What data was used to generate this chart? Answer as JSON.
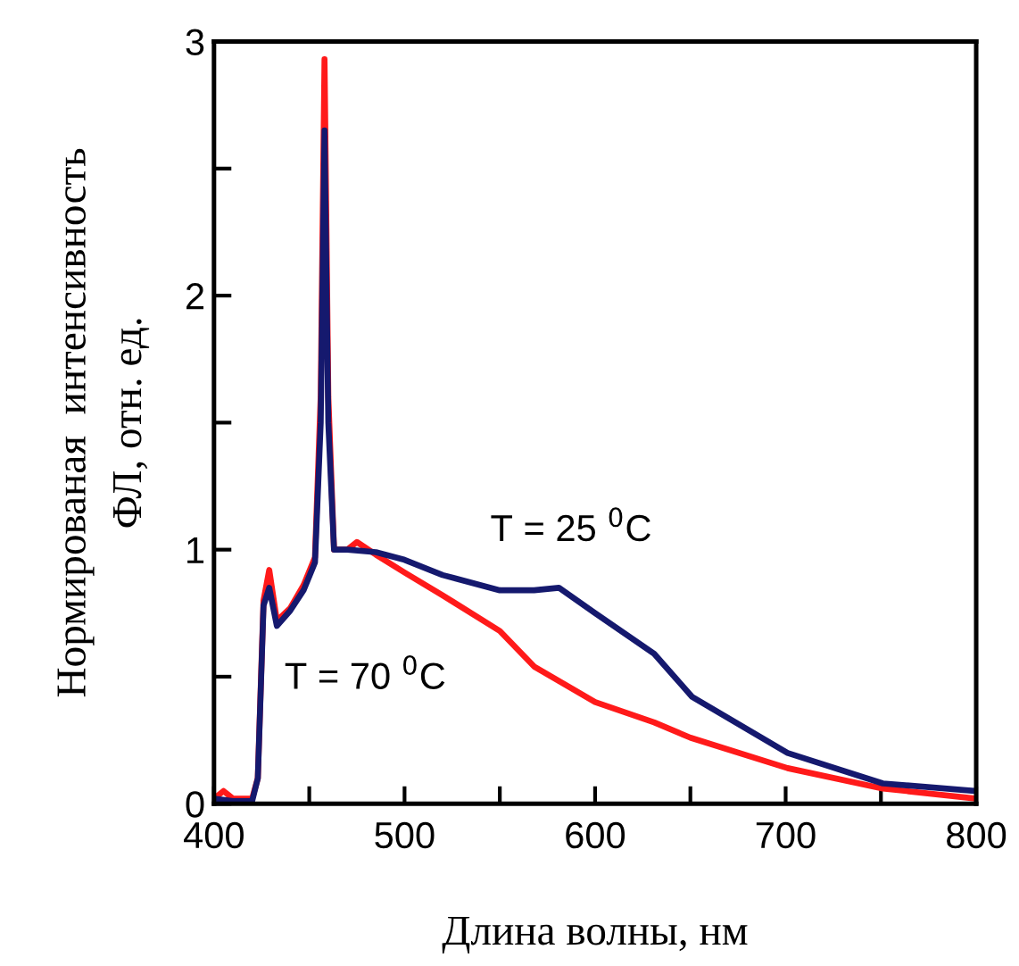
{
  "chart_data": {
    "type": "line",
    "xlabel": "Длина волны, нм",
    "ylabel": "Нормированая  интенсивность\nФЛ, отн. ед.",
    "series": [
      {
        "color": "#ff1a1a",
        "x": [
          400,
          405,
          410,
          420,
          423,
          426,
          429,
          433,
          440,
          447,
          453,
          456,
          458,
          460,
          463,
          470,
          475,
          485,
          500,
          520,
          550,
          568,
          600,
          631,
          650,
          701,
          751,
          800
        ],
        "values": [
          0.02,
          0.05,
          0.02,
          0.02,
          0.1,
          0.8,
          0.92,
          0.72,
          0.77,
          0.86,
          0.97,
          1.6,
          2.93,
          1.6,
          1.0,
          1.0,
          1.03,
          0.98,
          0.91,
          0.82,
          0.68,
          0.54,
          0.4,
          0.32,
          0.26,
          0.14,
          0.06,
          0.02
        ]
      },
      {
        "color": "#15196e",
        "x": [
          400,
          410,
          420,
          423,
          426,
          429,
          433,
          440,
          447,
          453,
          456,
          458,
          460,
          463,
          470,
          485,
          500,
          520,
          550,
          568,
          581,
          600,
          631,
          651,
          701,
          751,
          800
        ],
        "values": [
          0.02,
          0.01,
          0.01,
          0.1,
          0.78,
          0.85,
          0.7,
          0.76,
          0.84,
          0.95,
          1.5,
          2.65,
          1.5,
          1.0,
          1.0,
          0.99,
          0.96,
          0.9,
          0.84,
          0.84,
          0.85,
          0.75,
          0.59,
          0.42,
          0.2,
          0.08,
          0.05
        ]
      }
    ],
    "annotations": [
      "T = 25 $^{0}$C",
      "T = 70 $^{0}$C"
    ],
    "xlim": [
      400,
      800
    ],
    "xticks": [
      400,
      {
        "value": 450,
        "label": null
      },
      500,
      {
        "value": 550,
        "label": null
      },
      600,
      {
        "value": 650,
        "label": null
      },
      700,
      {
        "value": 750,
        "label": null
      },
      800
    ],
    "ylim": [
      0,
      3
    ],
    "yticks": [
      0,
      {
        "value": 0.5,
        "label": null
      },
      1,
      {
        "value": 1.5,
        "label": null
      },
      2,
      {
        "value": 2.5,
        "label": null
      },
      3
    ],
    "grid": false,
    "legend": false
  }
}
